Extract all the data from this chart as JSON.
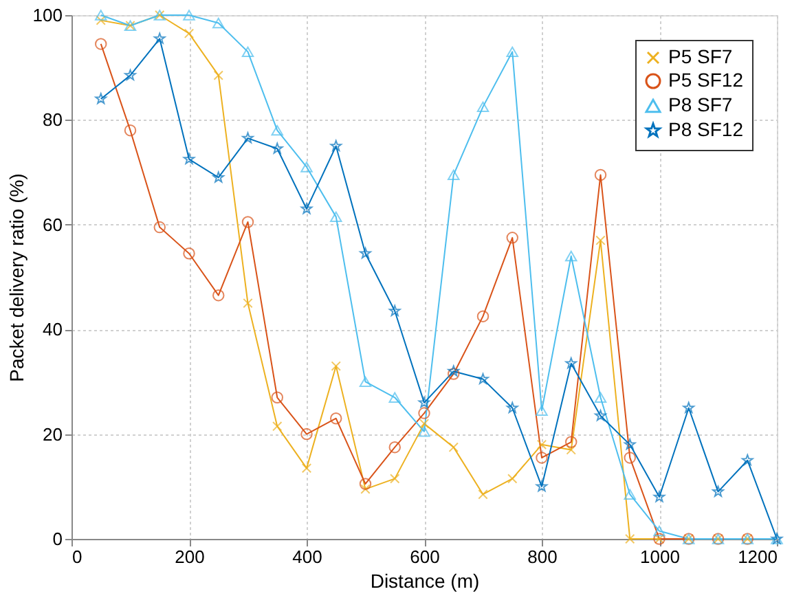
{
  "chart_data": {
    "type": "line",
    "xlabel": "Distance (m)",
    "ylabel": "Packet delivery ratio (%)",
    "xlim": [
      0,
      1200
    ],
    "xticks": [
      0,
      200,
      400,
      600,
      800,
      1000,
      1200
    ],
    "ylim": [
      0,
      100
    ],
    "yticks": [
      0,
      20,
      40,
      60,
      80,
      100
    ],
    "grid": true,
    "legend": "top right",
    "series": [
      {
        "name": "P5 SF7",
        "color": "#edb120",
        "marker": "cross",
        "x": [
          50,
          100,
          150,
          200,
          250,
          300,
          350,
          400,
          450,
          500,
          550,
          600,
          650,
          700,
          750,
          800,
          850,
          900,
          950,
          1000,
          1050,
          1100,
          1150
        ],
        "values": [
          99,
          98,
          100,
          96.5,
          88.5,
          45,
          21.5,
          13.5,
          33,
          9.5,
          11.5,
          22,
          17.5,
          8.5,
          11.5,
          18,
          17,
          57,
          0,
          0,
          0,
          0,
          0
        ]
      },
      {
        "name": "P5 SF12",
        "color": "#d95319",
        "marker": "circle",
        "x": [
          50,
          100,
          150,
          200,
          250,
          300,
          350,
          400,
          450,
          500,
          550,
          600,
          650,
          700,
          750,
          800,
          850,
          900,
          950,
          1000,
          1050,
          1100,
          1150
        ],
        "values": [
          94.5,
          78,
          59.5,
          54.5,
          46.5,
          60.5,
          27,
          20,
          23,
          10.5,
          17.5,
          24,
          31.5,
          42.5,
          57.5,
          15.5,
          18.5,
          69.5,
          15.5,
          0,
          0,
          0,
          0
        ]
      },
      {
        "name": "P8 SF7",
        "color": "#4dbeee",
        "marker": "triangle",
        "x": [
          50,
          100,
          150,
          200,
          250,
          300,
          350,
          400,
          450,
          500,
          550,
          600,
          650,
          700,
          750,
          800,
          850,
          900,
          950,
          1000,
          1050,
          1100,
          1150,
          1200
        ],
        "values": [
          100,
          98,
          100,
          100,
          98.5,
          93,
          78,
          71,
          61.5,
          30,
          27,
          20.5,
          69.5,
          82.5,
          93,
          24.5,
          54,
          27,
          8.5,
          1.5,
          0,
          0,
          0,
          0
        ]
      },
      {
        "name": "P8 SF12",
        "color": "#0072bd",
        "marker": "star",
        "x": [
          50,
          100,
          150,
          200,
          250,
          300,
          350,
          400,
          450,
          500,
          550,
          600,
          650,
          700,
          750,
          800,
          850,
          900,
          950,
          1000,
          1050,
          1100,
          1150,
          1200
        ],
        "values": [
          84,
          88.5,
          95.5,
          72.5,
          69,
          76.5,
          74.5,
          63,
          75,
          54.5,
          43.5,
          26,
          32,
          30.5,
          25,
          10,
          33.5,
          23.5,
          18,
          8,
          25,
          9,
          15,
          0
        ]
      }
    ]
  }
}
